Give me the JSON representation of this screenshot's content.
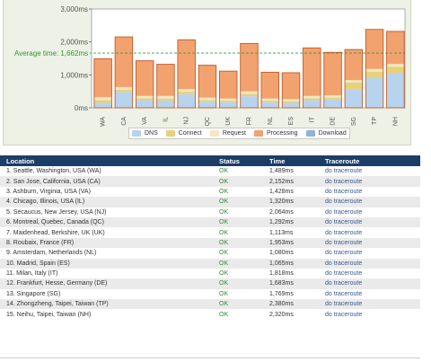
{
  "chart": {
    "y_tick_labels": [
      "3,000ms",
      "2,000ms",
      "1,000ms",
      "0ms"
    ],
    "average_label": "Average time: 1,662ms",
    "legend": [
      {
        "label": "DNS",
        "color": "#b7d3ee"
      },
      {
        "label": "Connect",
        "color": "#e6d27a"
      },
      {
        "label": "Request",
        "color": "#f3e7c4"
      },
      {
        "label": "Processing",
        "color": "#f2a26e"
      },
      {
        "label": "Download",
        "color": "#8fb4cf"
      }
    ]
  },
  "chart_data": {
    "type": "bar",
    "stacked": true,
    "categories": [
      "WA",
      "CA",
      "VA",
      "IL",
      "NJ",
      "QC",
      "UK",
      "FR",
      "NL",
      "ES",
      "IT",
      "DE",
      "SG",
      "TP",
      "NH"
    ],
    "series": [
      {
        "name": "DNS",
        "values": [
          150,
          480,
          230,
          220,
          420,
          180,
          170,
          350,
          170,
          150,
          230,
          250,
          570,
          900,
          1050
        ]
      },
      {
        "name": "Connect",
        "values": [
          80,
          70,
          60,
          60,
          70,
          60,
          50,
          70,
          50,
          50,
          60,
          60,
          200,
          200,
          200
        ]
      },
      {
        "name": "Request",
        "values": [
          90,
          80,
          70,
          80,
          80,
          70,
          60,
          80,
          60,
          60,
          70,
          70,
          70,
          80,
          80
        ]
      },
      {
        "name": "Processing",
        "values": [
          1169,
          1522,
          1068,
          960,
          1494,
          982,
          833,
          1453,
          800,
          805,
          1458,
          1303,
          929,
          1200,
          990
        ]
      }
    ],
    "totals": [
      1489,
      2152,
      1428,
      1320,
      2064,
      1292,
      1113,
      1953,
      1080,
      1065,
      1818,
      1683,
      1769,
      2380,
      2320
    ],
    "average": 1662,
    "ylim": [
      0,
      3000
    ],
    "y_ticks": [
      0,
      1000,
      2000,
      3000
    ],
    "grid": false,
    "legend_position": "bottom"
  },
  "table": {
    "headers": {
      "location": "Location",
      "status": "Status",
      "time": "Time",
      "traceroute": "Traceroute"
    },
    "rows": [
      {
        "location": "1. Seattle, Washington, USA (WA)",
        "status": "OK",
        "time": "1,489ms",
        "traceroute": "do traceroute"
      },
      {
        "location": "2. San Jose, California, USA (CA)",
        "status": "OK",
        "time": "2,152ms",
        "traceroute": "do traceroute"
      },
      {
        "location": "3. Ashburn, Virginia, USA (VA)",
        "status": "OK",
        "time": "1,428ms",
        "traceroute": "do traceroute"
      },
      {
        "location": "4. Chicago, Illinois, USA (IL)",
        "status": "OK",
        "time": "1,320ms",
        "traceroute": "do traceroute"
      },
      {
        "location": "5. Secaucus, New Jersey, USA (NJ)",
        "status": "OK",
        "time": "2,064ms",
        "traceroute": "do traceroute"
      },
      {
        "location": "6. Montreal, Quebec, Canada (QC)",
        "status": "OK",
        "time": "1,292ms",
        "traceroute": "do traceroute"
      },
      {
        "location": "7. Maidenhead, Berkshire, UK (UK)",
        "status": "OK",
        "time": "1,113ms",
        "traceroute": "do traceroute"
      },
      {
        "location": "8. Roubaix, France (FR)",
        "status": "OK",
        "time": "1,953ms",
        "traceroute": "do traceroute"
      },
      {
        "location": "9. Amsterdam, Netherlands (NL)",
        "status": "OK",
        "time": "1,080ms",
        "traceroute": "do traceroute"
      },
      {
        "location": "10. Madrid, Spain (ES)",
        "status": "OK",
        "time": "1,065ms",
        "traceroute": "do traceroute"
      },
      {
        "location": "11. Milan, Italy (IT)",
        "status": "OK",
        "time": "1,818ms",
        "traceroute": "do traceroute"
      },
      {
        "location": "12. Frankfurt, Hesse, Germany (DE)",
        "status": "OK",
        "time": "1,683ms",
        "traceroute": "do traceroute"
      },
      {
        "location": "13. Singapore (SG)",
        "status": "OK",
        "time": "1,769ms",
        "traceroute": "do traceroute"
      },
      {
        "location": "14. Zhongzheng, Taipei, Taiwan (TP)",
        "status": "OK",
        "time": "2,380ms",
        "traceroute": "do traceroute"
      },
      {
        "location": "15. Neihu, Taipei, Taiwan (NH)",
        "status": "OK",
        "time": "2,320ms",
        "traceroute": "do traceroute"
      }
    ]
  }
}
